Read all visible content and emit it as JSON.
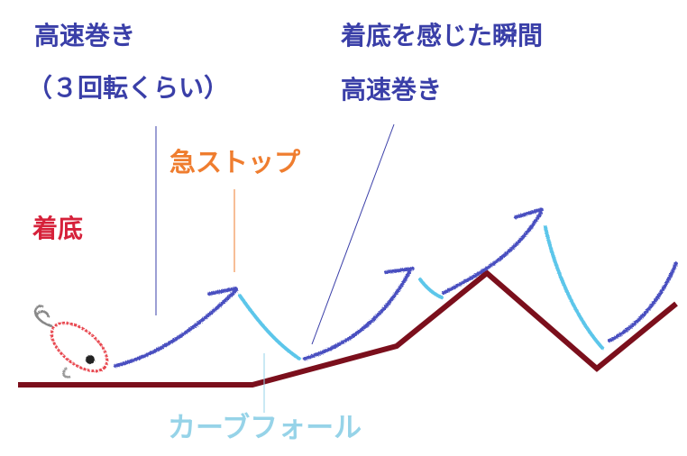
{
  "labels": {
    "fast_reel_1": "高速巻き",
    "fast_reel_1_note": "（３回転くらい）",
    "bite_bottom": "着底を感じた瞬間",
    "fast_reel_2": "高速巻き",
    "sudden_stop": "急ストップ",
    "bottom": "着底",
    "curve_fall": "カーブフォール"
  },
  "colors": {
    "seabed": "#7b0f1c",
    "reel_path": "#4a50c0",
    "fall_path": "#5cc6ea",
    "label_blue": "#3a3fa8",
    "label_orange": "#ef7d2f",
    "label_red": "#d6213a",
    "label_cyan": "#96d3e8",
    "lure_body": "#e8464f"
  }
}
